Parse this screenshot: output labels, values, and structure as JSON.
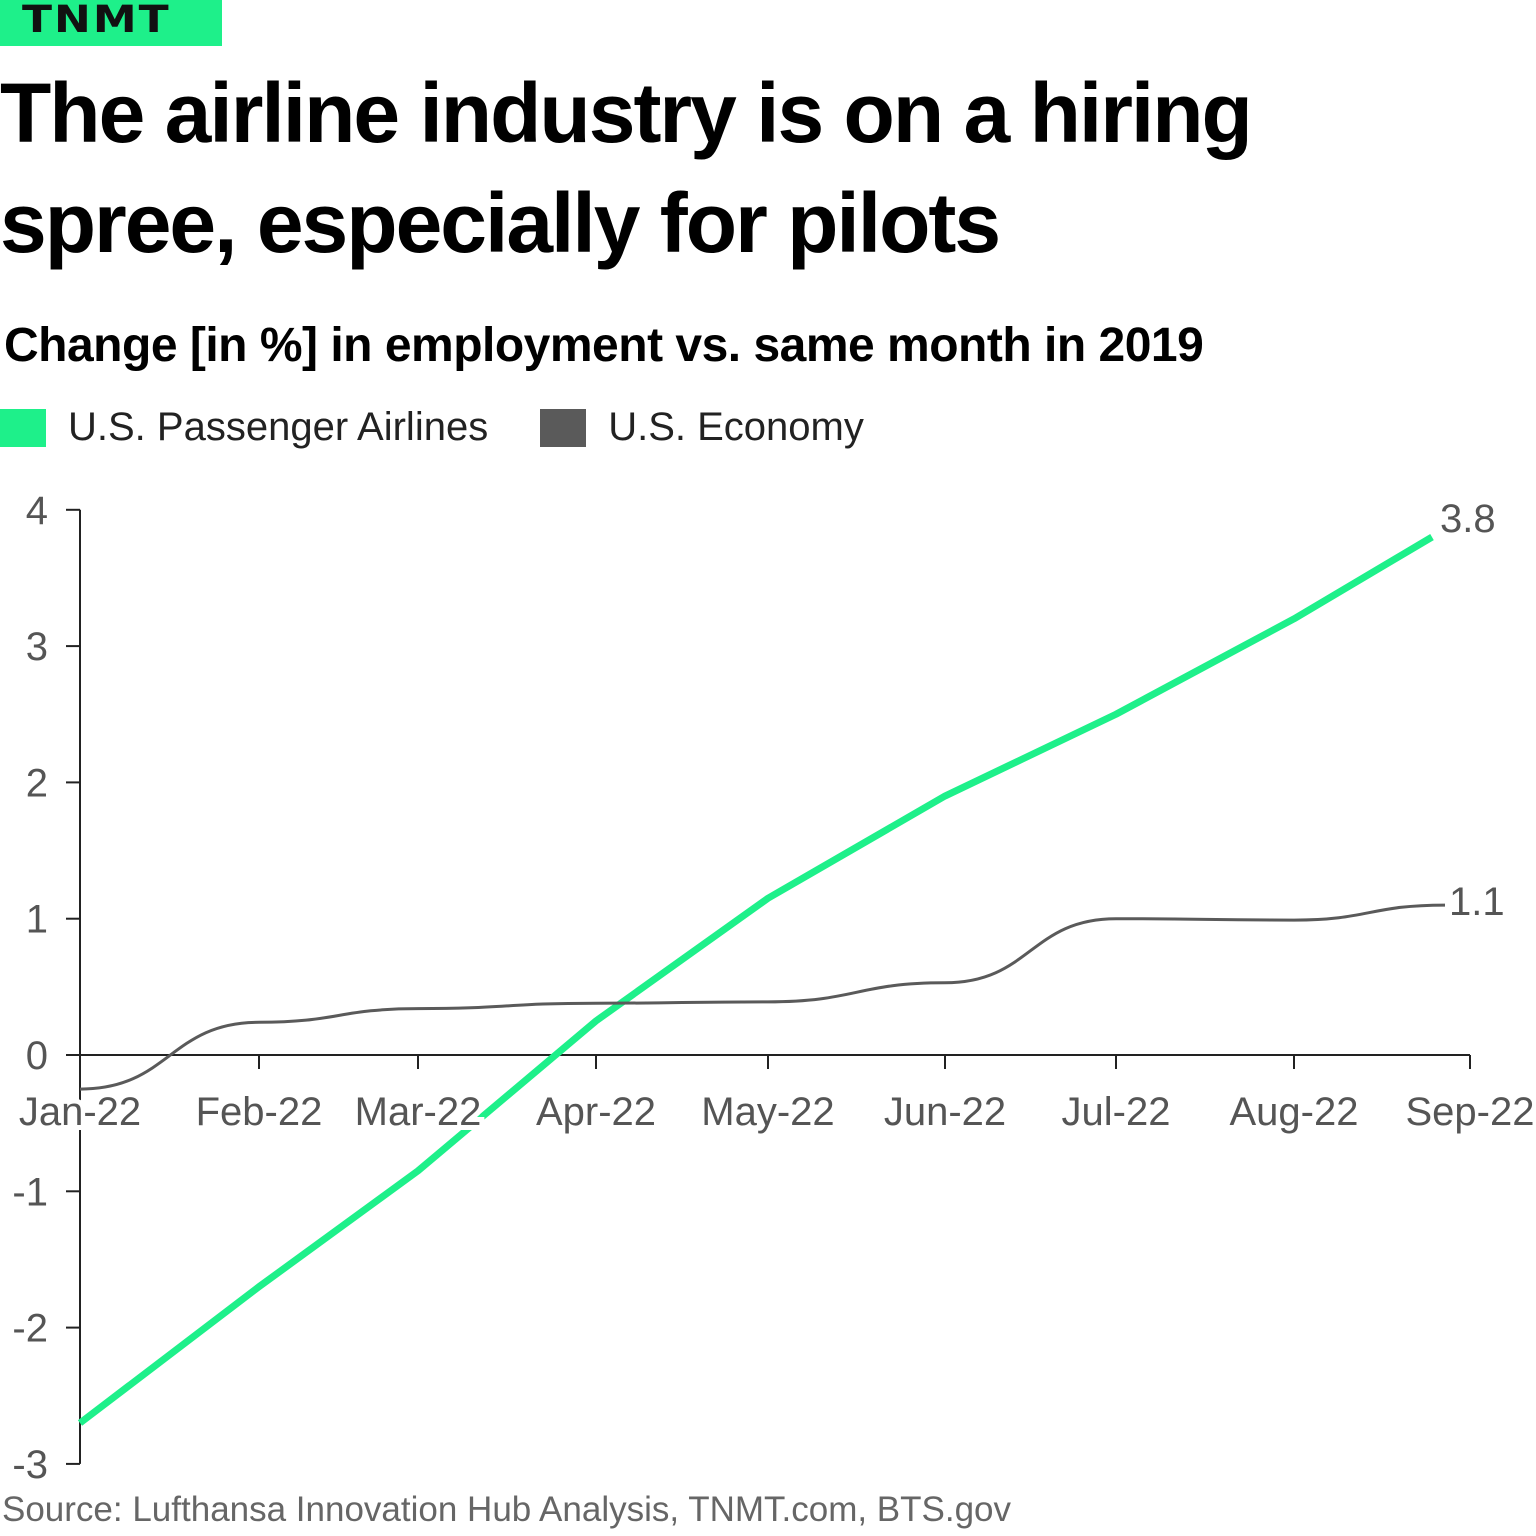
{
  "brand": {
    "logo_text": "TNMT",
    "color": "#1ef08a"
  },
  "title": "The airline industry is on a hiring spree, especially for pilots",
  "subtitle": "Change [in %] in employment vs. same month in 2019",
  "source": "Source: Lufthansa Innovation Hub Analysis, TNMT.com, BTS.gov",
  "chart_data": {
    "type": "line",
    "categories": [
      "Jan-22",
      "Feb-22",
      "Mar-22",
      "Apr-22",
      "May-22",
      "Jun-22",
      "Jul-22",
      "Aug-22",
      "Sep-22"
    ],
    "y_ticks": [
      "4",
      "3",
      "2",
      "1",
      "0",
      "-1",
      "-2",
      "-3"
    ],
    "ylim": [
      -3,
      4
    ],
    "grid": false,
    "legend_position": "top-left",
    "series": [
      {
        "name": "U.S. Passenger Airlines",
        "color": "#1ef08a",
        "values": [
          -2.7,
          -1.7,
          -0.85,
          0.25,
          1.15,
          1.9,
          2.5,
          3.2,
          3.8
        ],
        "end_label": "3.8"
      },
      {
        "name": "U.S. Economy",
        "color": "#5a5a5a",
        "values": [
          -0.25,
          0.24,
          0.34,
          0.38,
          0.39,
          0.53,
          1.0,
          0.99,
          1.1
        ],
        "end_label": "1.1"
      }
    ]
  }
}
